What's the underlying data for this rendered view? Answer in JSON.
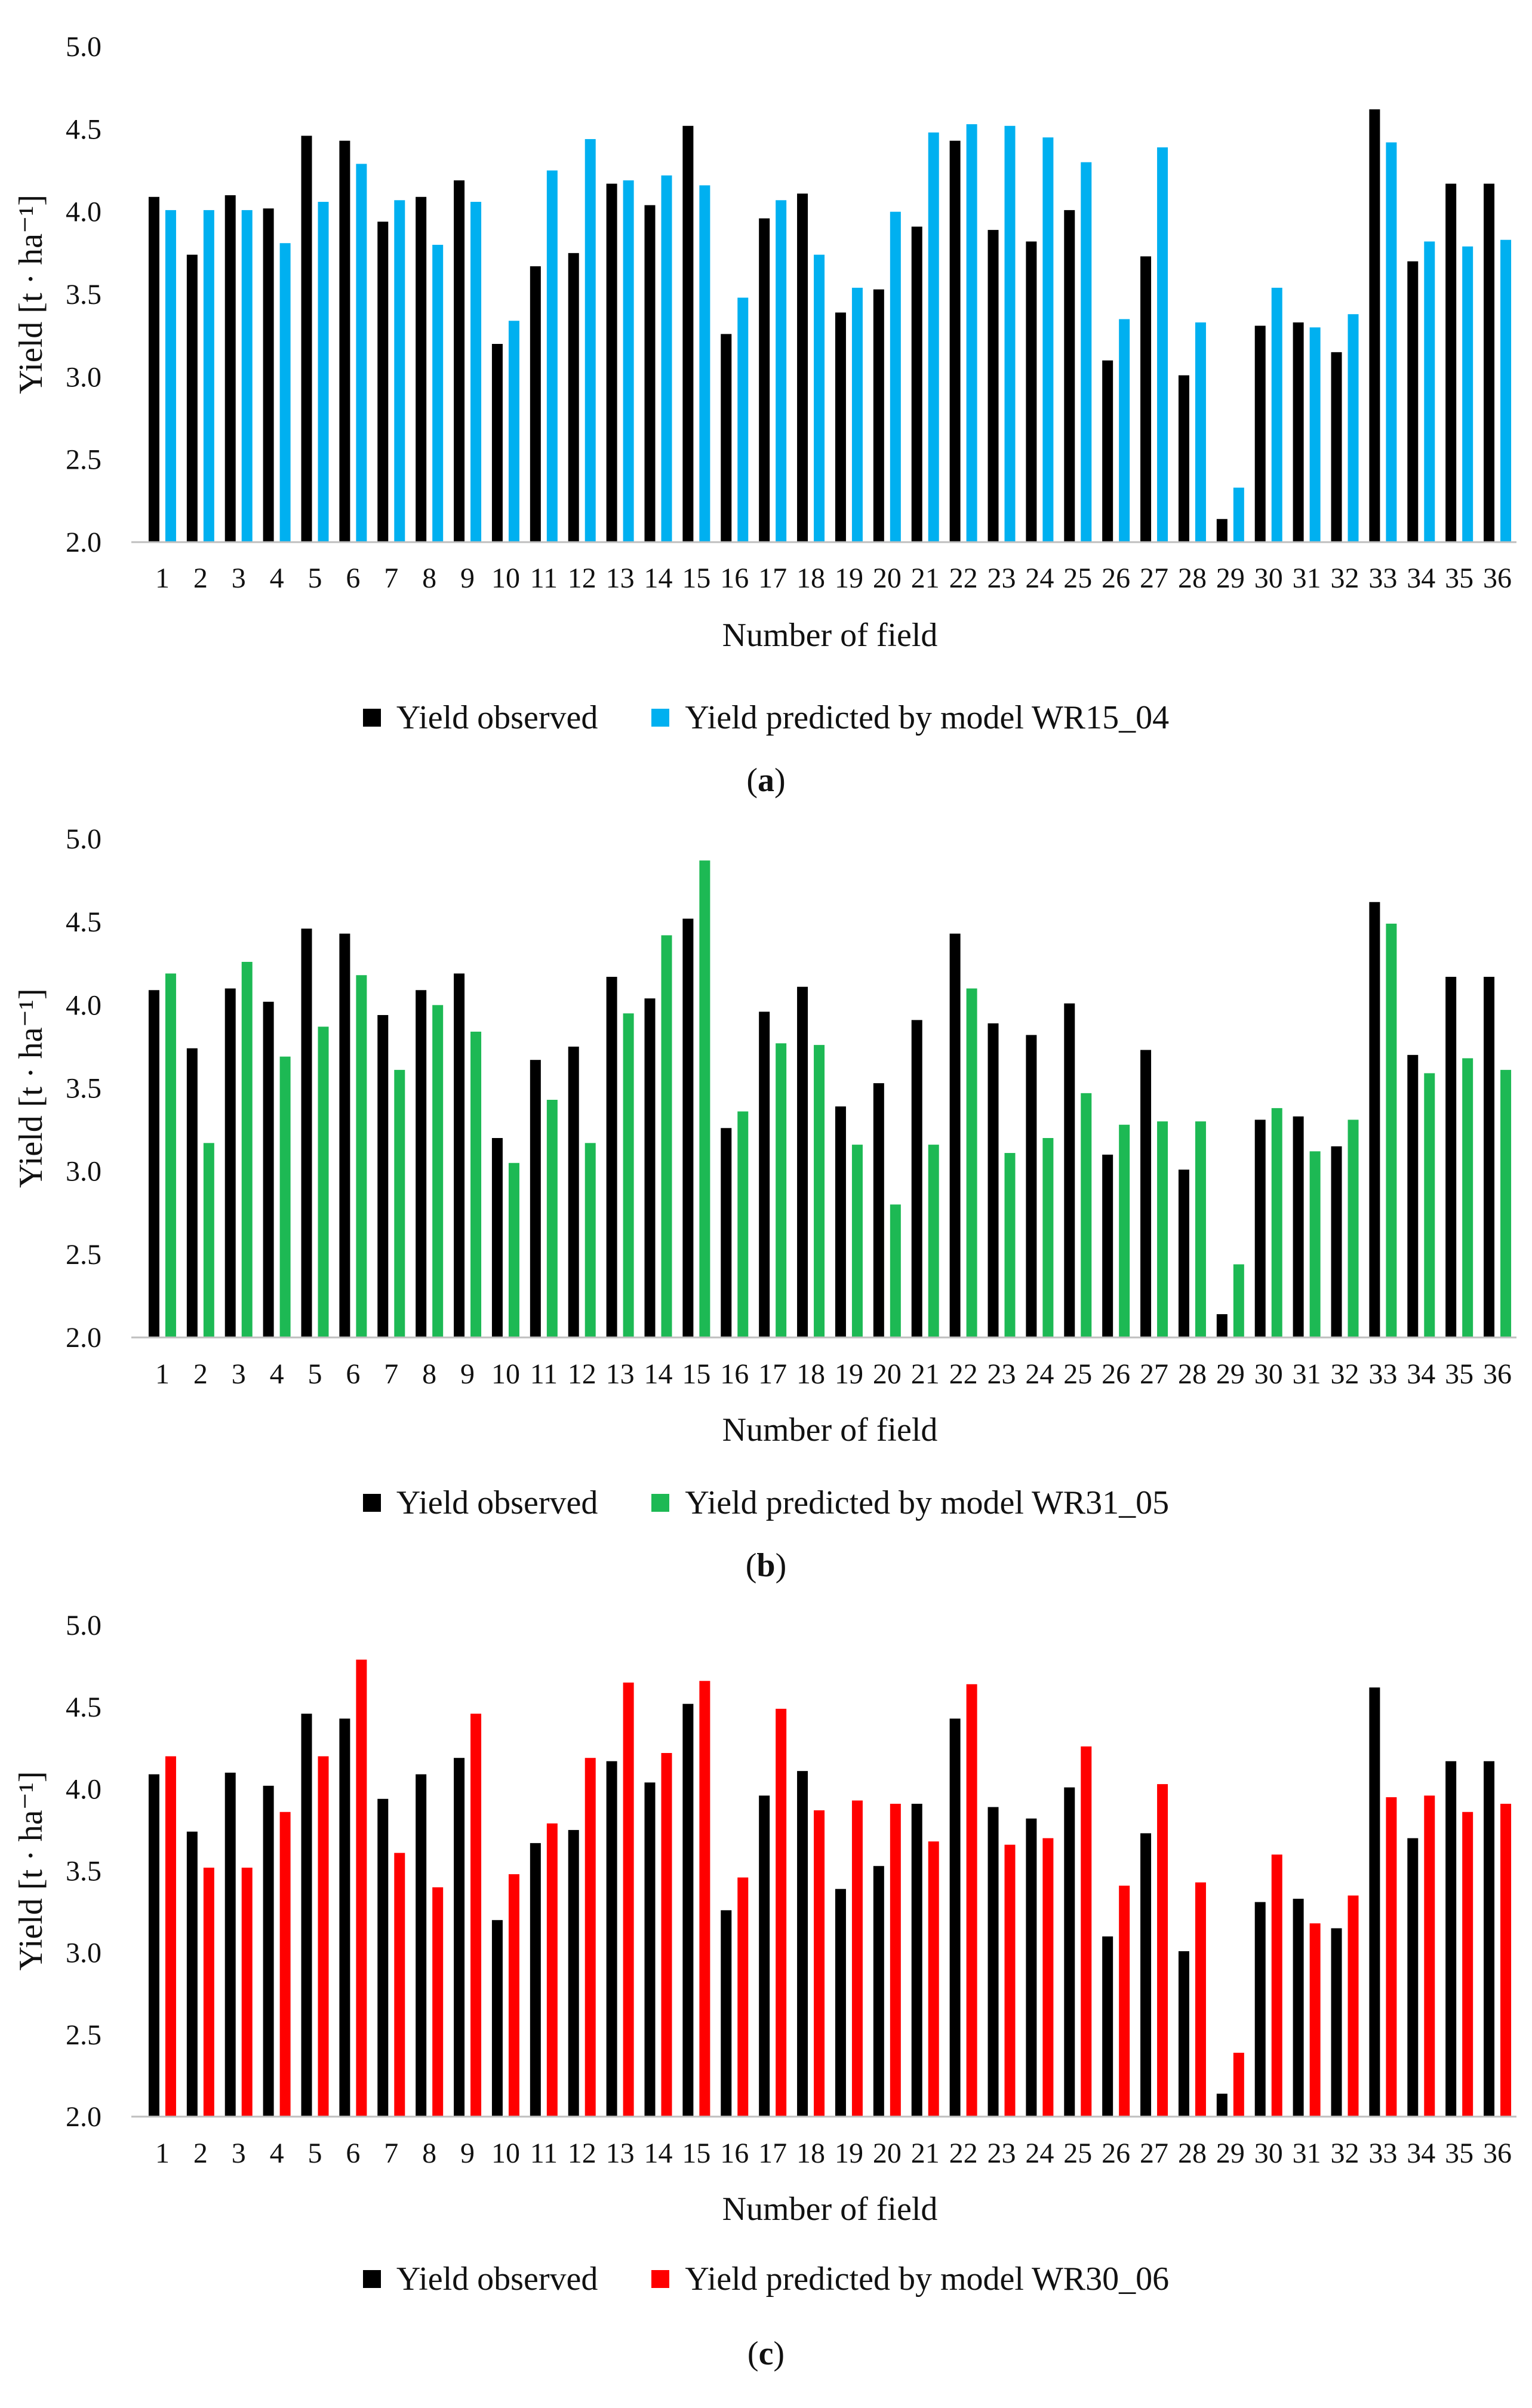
{
  "chart_data": [
    {
      "type": "bar",
      "panel_label": "a",
      "xlabel": "Number of field",
      "ylabel": "Yield [t · ha⁻¹]",
      "ylim": [
        2.0,
        5.0
      ],
      "yticks": [
        "2.0",
        "2.5",
        "3.0",
        "3.5",
        "4.0",
        "4.5",
        "5.0"
      ],
      "categories": [
        "1",
        "2",
        "3",
        "4",
        "5",
        "6",
        "7",
        "8",
        "9",
        "10",
        "11",
        "12",
        "13",
        "14",
        "15",
        "16",
        "17",
        "18",
        "19",
        "20",
        "21",
        "22",
        "23",
        "24",
        "25",
        "26",
        "27",
        "28",
        "29",
        "30",
        "31",
        "32",
        "33",
        "34",
        "35",
        "36"
      ],
      "series": [
        {
          "name": "Yield observed",
          "color": "#000000",
          "values": [
            4.09,
            3.74,
            4.1,
            4.02,
            4.46,
            4.43,
            3.94,
            4.09,
            4.19,
            3.2,
            3.67,
            3.75,
            4.17,
            4.04,
            4.52,
            3.26,
            3.96,
            4.11,
            3.39,
            3.53,
            3.91,
            4.43,
            3.89,
            3.82,
            4.01,
            3.1,
            3.73,
            3.01,
            2.14,
            3.31,
            3.33,
            3.15,
            4.62,
            3.7,
            4.17,
            4.17
          ]
        },
        {
          "name": "Yield predicted by model WR15_04",
          "color": "#00B0F0",
          "values": [
            4.01,
            4.01,
            4.01,
            3.81,
            4.06,
            4.29,
            4.07,
            3.8,
            4.06,
            3.34,
            4.25,
            4.44,
            4.19,
            4.22,
            4.16,
            3.48,
            4.07,
            3.74,
            3.54,
            4.0,
            4.48,
            4.53,
            4.52,
            4.45,
            4.3,
            3.35,
            4.39,
            3.33,
            2.33,
            3.54,
            3.3,
            3.38,
            4.42,
            3.82,
            3.79,
            3.83
          ]
        }
      ]
    },
    {
      "type": "bar",
      "panel_label": "b",
      "xlabel": "Number of field",
      "ylabel": "Yield [t · ha⁻¹]",
      "ylim": [
        2.0,
        5.0
      ],
      "yticks": [
        "2.0",
        "2.5",
        "3.0",
        "3.5",
        "4.0",
        "4.5",
        "5.0"
      ],
      "categories": [
        "1",
        "2",
        "3",
        "4",
        "5",
        "6",
        "7",
        "8",
        "9",
        "10",
        "11",
        "12",
        "13",
        "14",
        "15",
        "16",
        "17",
        "18",
        "19",
        "20",
        "21",
        "22",
        "23",
        "24",
        "25",
        "26",
        "27",
        "28",
        "29",
        "30",
        "31",
        "32",
        "33",
        "34",
        "35",
        "36"
      ],
      "series": [
        {
          "name": "Yield observed",
          "color": "#000000",
          "values": [
            4.09,
            3.74,
            4.1,
            4.02,
            4.46,
            4.43,
            3.94,
            4.09,
            4.19,
            3.2,
            3.67,
            3.75,
            4.17,
            4.04,
            4.52,
            3.26,
            3.96,
            4.11,
            3.39,
            3.53,
            3.91,
            4.43,
            3.89,
            3.82,
            4.01,
            3.1,
            3.73,
            3.01,
            2.14,
            3.31,
            3.33,
            3.15,
            4.62,
            3.7,
            4.17,
            4.17
          ]
        },
        {
          "name": "Yield predicted by model WR31_05",
          "color": "#1DB954",
          "values": [
            4.19,
            3.17,
            4.26,
            3.69,
            3.87,
            4.18,
            3.61,
            4.0,
            3.84,
            3.05,
            3.43,
            3.17,
            3.95,
            4.42,
            4.87,
            3.36,
            3.77,
            3.76,
            3.16,
            2.8,
            3.16,
            4.1,
            3.11,
            3.2,
            3.47,
            3.28,
            3.3,
            3.3,
            2.44,
            3.38,
            3.12,
            3.31,
            4.49,
            3.59,
            3.68,
            3.61
          ]
        }
      ]
    },
    {
      "type": "bar",
      "panel_label": "c",
      "xlabel": "Number of field",
      "ylabel": "Yield [t · ha⁻¹]",
      "ylim": [
        2.0,
        5.0
      ],
      "yticks": [
        "2.0",
        "2.5",
        "3.0",
        "3.5",
        "4.0",
        "4.5",
        "5.0"
      ],
      "categories": [
        "1",
        "2",
        "3",
        "4",
        "5",
        "6",
        "7",
        "8",
        "9",
        "10",
        "11",
        "12",
        "13",
        "14",
        "15",
        "16",
        "17",
        "18",
        "19",
        "20",
        "21",
        "22",
        "23",
        "24",
        "25",
        "26",
        "27",
        "28",
        "29",
        "30",
        "31",
        "32",
        "33",
        "34",
        "35",
        "36"
      ],
      "series": [
        {
          "name": "Yield observed",
          "color": "#000000",
          "values": [
            4.09,
            3.74,
            4.1,
            4.02,
            4.46,
            4.43,
            3.94,
            4.09,
            4.19,
            3.2,
            3.67,
            3.75,
            4.17,
            4.04,
            4.52,
            3.26,
            3.96,
            4.11,
            3.39,
            3.53,
            3.91,
            4.43,
            3.89,
            3.82,
            4.01,
            3.1,
            3.73,
            3.01,
            2.14,
            3.31,
            3.33,
            3.15,
            4.62,
            3.7,
            4.17,
            4.17
          ]
        },
        {
          "name": "Yield predicted by model WR30_06",
          "color": "#FF0000",
          "values": [
            4.2,
            3.52,
            3.52,
            3.86,
            4.2,
            4.79,
            3.61,
            3.4,
            4.46,
            3.48,
            3.79,
            4.19,
            4.65,
            4.22,
            4.66,
            3.46,
            4.49,
            3.87,
            3.93,
            3.91,
            3.68,
            4.64,
            3.66,
            3.7,
            4.26,
            3.41,
            4.03,
            3.43,
            2.39,
            3.6,
            3.18,
            3.35,
            3.95,
            3.96,
            3.86,
            3.91
          ]
        }
      ]
    }
  ]
}
